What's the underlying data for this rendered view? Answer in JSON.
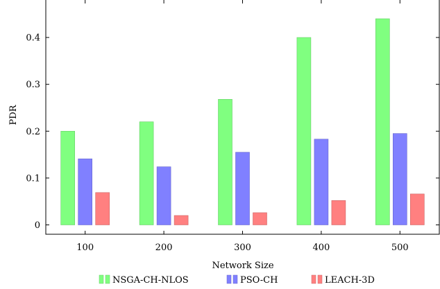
{
  "chart_data": {
    "type": "bar",
    "categories": [
      "100",
      "200",
      "300",
      "400",
      "500"
    ],
    "series": [
      {
        "name": "NSGA-CH-NLOS",
        "values": [
          0.2,
          0.22,
          0.268,
          0.4,
          0.44
        ],
        "color": "#80ff80",
        "stroke": "#66cc66"
      },
      {
        "name": "PSO-CH",
        "values": [
          0.141,
          0.124,
          0.155,
          0.183,
          0.195
        ],
        "color": "#8080ff",
        "stroke": "#6666cc"
      },
      {
        "name": "LEACH-3D",
        "values": [
          0.069,
          0.02,
          0.026,
          0.052,
          0.066
        ],
        "color": "#ff8080",
        "stroke": "#cc6666"
      }
    ],
    "xlabel": "Network Size",
    "ylabel": "PDR",
    "ylim": [
      -0.02,
      0.48
    ],
    "yticks": [
      0,
      0.1,
      0.2,
      0.3,
      0.4
    ],
    "ytick_labels": [
      "0",
      "0.1",
      "0.2",
      "0.3",
      "0.4"
    ],
    "grid": false,
    "legend_position": "bottom"
  }
}
